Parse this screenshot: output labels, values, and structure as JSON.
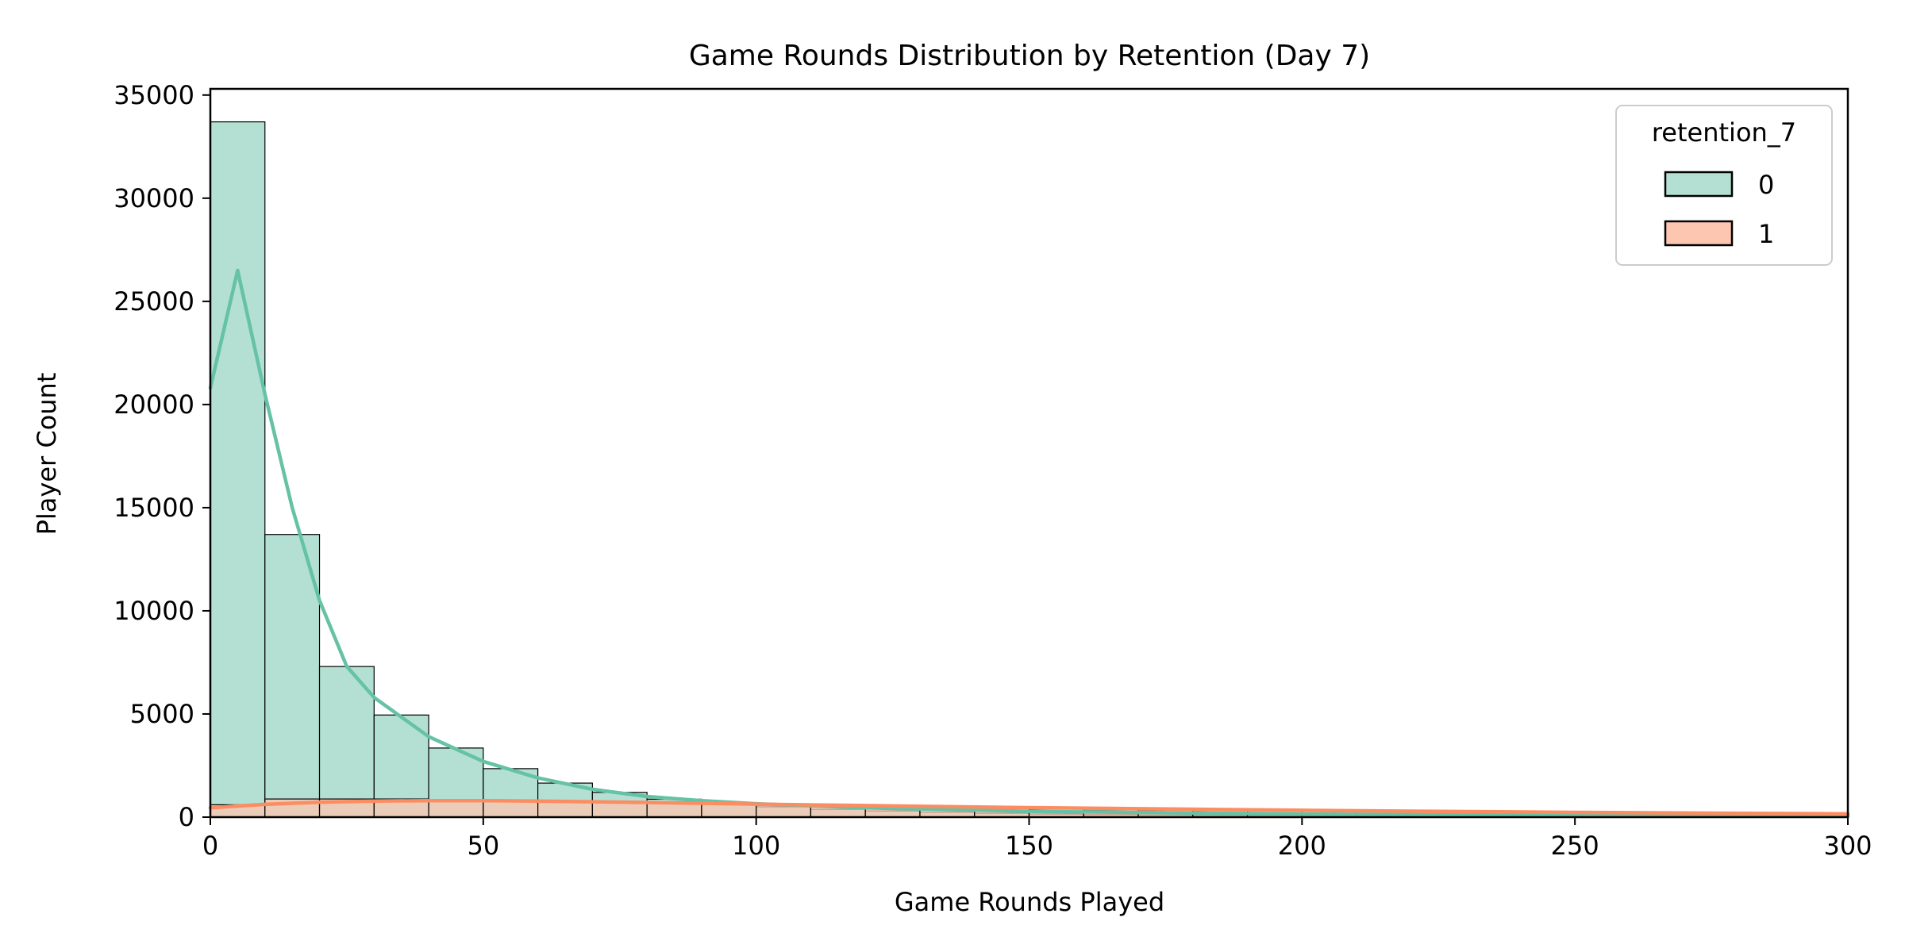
{
  "chart_data": {
    "type": "bar",
    "title": "Game Rounds Distribution by Retention (Day 7)",
    "xlabel": "Game Rounds Played",
    "ylabel": "Player Count",
    "xlim": [
      0,
      300
    ],
    "ylim": [
      0,
      35300
    ],
    "xticks": [
      0,
      50,
      100,
      150,
      200,
      250,
      300
    ],
    "yticks": [
      0,
      5000,
      10000,
      15000,
      20000,
      25000,
      30000,
      35000
    ],
    "grid": false,
    "legend": {
      "title": "retention_7",
      "placement": "top-right",
      "entries": [
        "0",
        "1"
      ]
    },
    "bin_width": 10,
    "bin_edges": [
      0,
      10,
      20,
      30,
      40,
      50,
      60,
      70,
      80,
      90,
      100,
      110,
      120,
      130,
      140,
      150,
      160,
      170,
      180,
      190,
      200,
      210,
      220,
      230,
      240,
      250,
      260,
      270,
      280,
      290,
      300
    ],
    "series": [
      {
        "name": "0",
        "color": "#66c2a5",
        "bar_color": "#b3e0d2",
        "counts": [
          33700,
          13700,
          7300,
          4950,
          3350,
          2350,
          1650,
          1200,
          870,
          650,
          500,
          380,
          300,
          240,
          190,
          150,
          120,
          100,
          85,
          72,
          62,
          55,
          48,
          42,
          37,
          33,
          30,
          27,
          24,
          22
        ],
        "kde_x": [
          0,
          5,
          10,
          15,
          20,
          25,
          30,
          40,
          50,
          60,
          70,
          80,
          90,
          100,
          120,
          150,
          200,
          250,
          300
        ],
        "kde_y": [
          20800,
          26500,
          20500,
          15000,
          10500,
          7300,
          5800,
          3900,
          2700,
          1900,
          1350,
          1000,
          800,
          650,
          450,
          280,
          150,
          90,
          60
        ]
      },
      {
        "name": "1",
        "color": "#fc8d62",
        "bar_color": "#fdc6b0",
        "counts": [
          600,
          880,
          880,
          880,
          860,
          820,
          780,
          720,
          670,
          620,
          570,
          520,
          480,
          450,
          420,
          390,
          360,
          340,
          320,
          300,
          280,
          260,
          245,
          230,
          220,
          210,
          200,
          190,
          180,
          170
        ],
        "kde_x": [
          0,
          10,
          20,
          30,
          40,
          50,
          60,
          80,
          100,
          120,
          150,
          200,
          250,
          300
        ],
        "kde_y": [
          450,
          620,
          720,
          780,
          800,
          800,
          780,
          710,
          630,
          560,
          460,
          330,
          230,
          160
        ]
      }
    ]
  }
}
